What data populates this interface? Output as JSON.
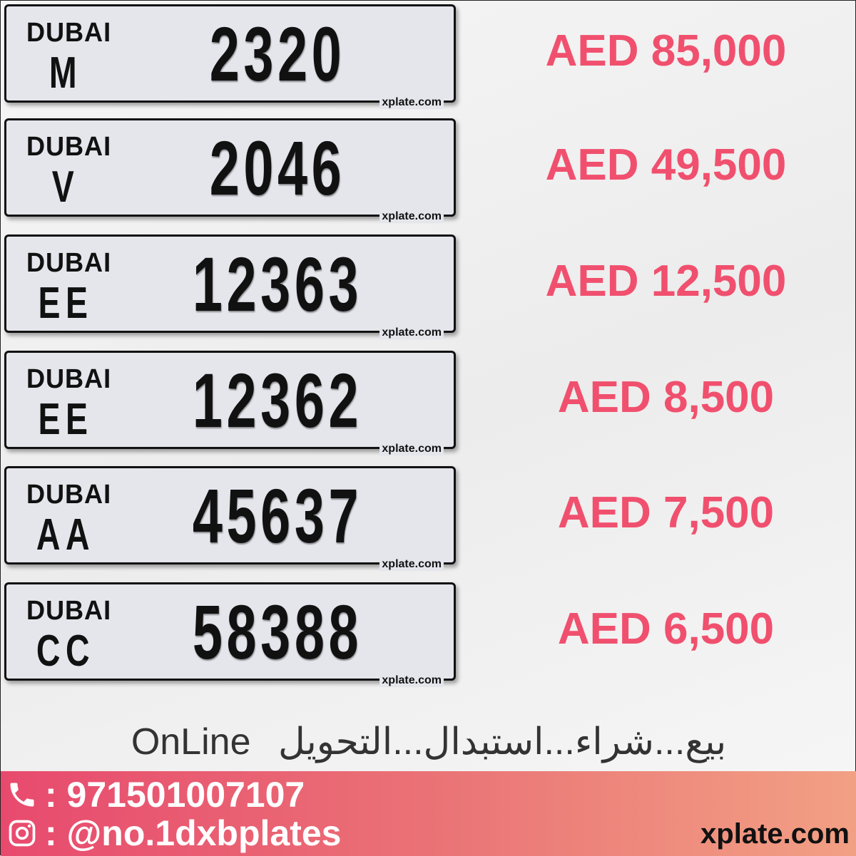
{
  "plates": [
    {
      "emirate": "DUBAI",
      "code": "M",
      "number": "2320",
      "watermark": "xplate.com",
      "price": "AED 85,000"
    },
    {
      "emirate": "DUBAI",
      "code": "V",
      "number": "2046",
      "watermark": "xplate.com",
      "price": "AED 49,500"
    },
    {
      "emirate": "DUBAI",
      "code": "EE",
      "number": "12363",
      "watermark": "xplate.com",
      "price": "AED 12,500"
    },
    {
      "emirate": "DUBAI",
      "code": "EE",
      "number": "12362",
      "watermark": "xplate.com",
      "price": "AED 8,500"
    },
    {
      "emirate": "DUBAI",
      "code": "AA",
      "number": "45637",
      "watermark": "xplate.com",
      "price": "AED 7,500"
    },
    {
      "emirate": "DUBAI",
      "code": "CC",
      "number": "58388",
      "watermark": "xplate.com",
      "price": "AED 6,500"
    }
  ],
  "tagline": {
    "en": "OnLine",
    "ar": "بيع...شراء...استبدال...التحويل"
  },
  "footer": {
    "phone": ": 971501007107",
    "instagram": ": @no.1dxbplates",
    "site": "xplate.com",
    "phone_icon": "phone-icon",
    "instagram_icon": "instagram-icon"
  },
  "colors": {
    "price": "#f0506e",
    "footer_start": "#e84a6e",
    "footer_end": "#f2a084"
  }
}
